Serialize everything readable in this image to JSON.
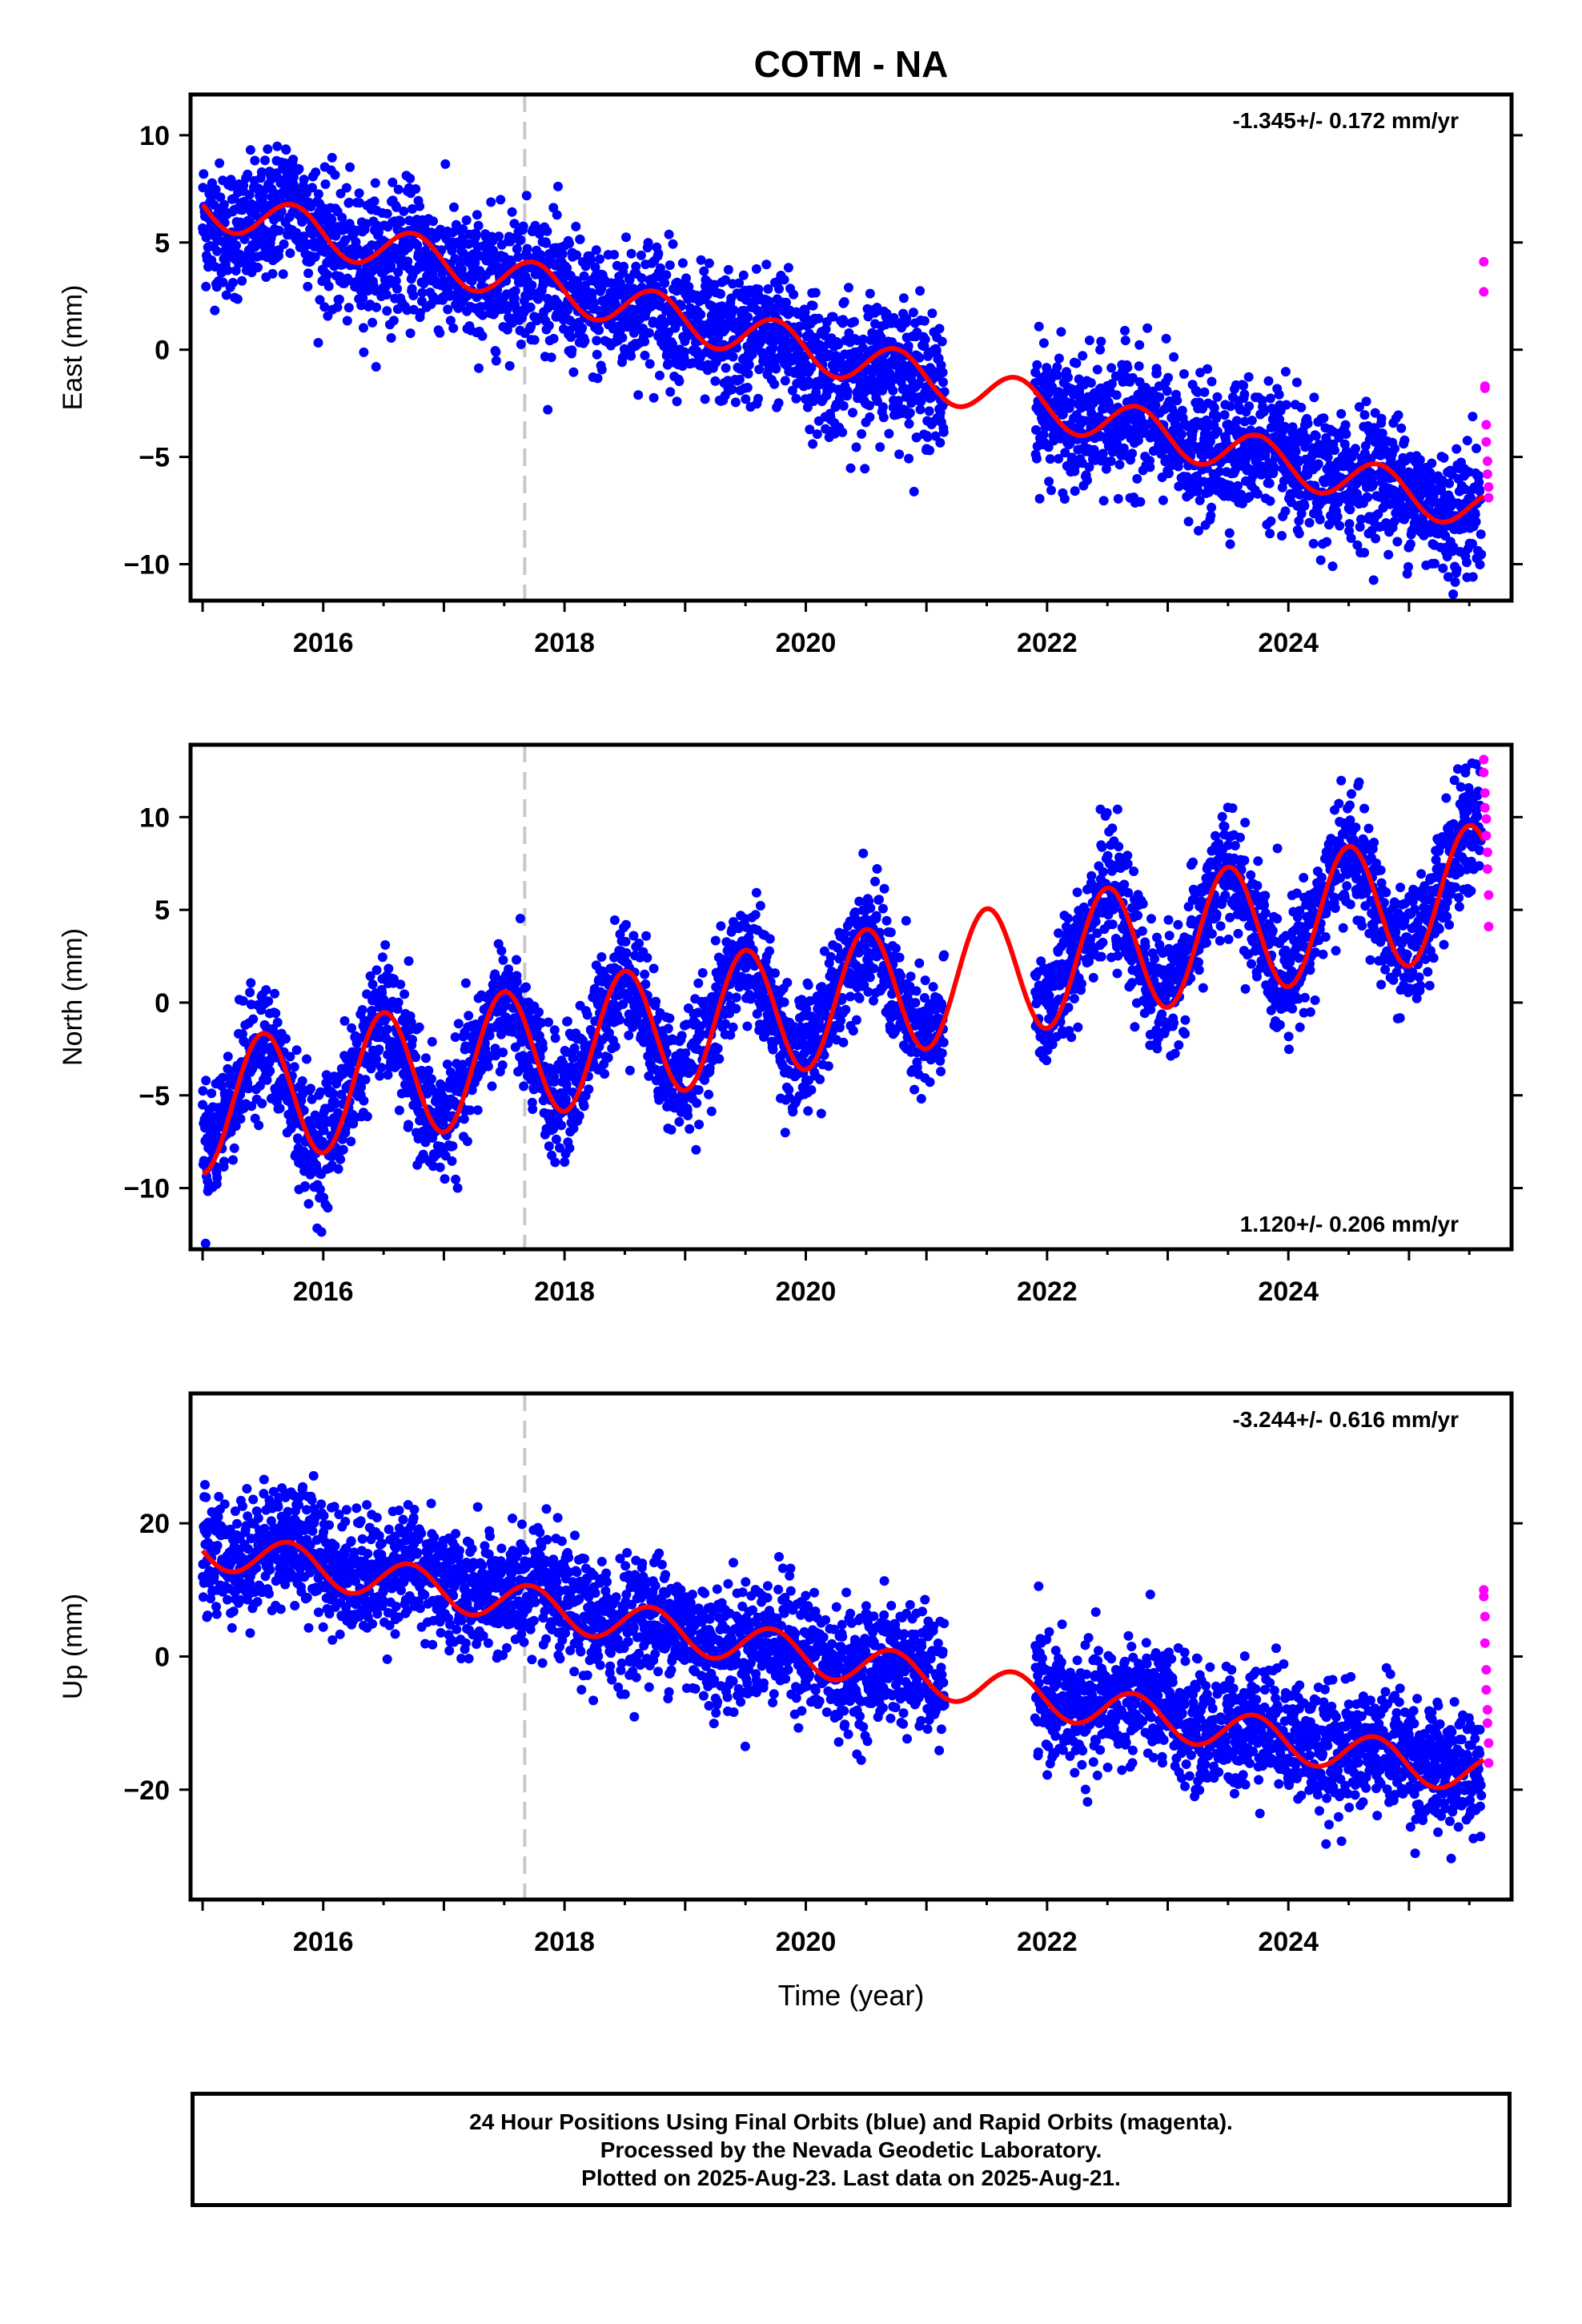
{
  "title": "COTM - NA",
  "colors": {
    "final": "#0000ff",
    "rapid": "#ff00ff",
    "model": "#ff0000",
    "marker": "#c8c8c8"
  },
  "caption": {
    "line1": "24 Hour Positions Using Final Orbits (blue) and Rapid Orbits (magenta).",
    "line2": "Processed by the Nevada Geodetic Laboratory.",
    "line3": "Plotted on 2025-Aug-23. Last data on 2025-Aug-21."
  },
  "chart_data": [
    {
      "type": "scatter",
      "ylabel": "East (mm)",
      "xlabel": "",
      "rate_label": "-1.345+/- 0.172 mm/yr",
      "rate_position": "top-right",
      "xlim": [
        2014.9,
        2025.85
      ],
      "ylim": [
        -11.7,
        11.9
      ],
      "xticks": [
        2016,
        2018,
        2020,
        2022,
        2024
      ],
      "yticks": [
        -10,
        -5,
        0,
        5,
        10
      ],
      "ytick_labels": [
        "−10",
        "−5",
        "0",
        "5",
        "10"
      ],
      "equipment_change_x": 2017.67,
      "rate_mm_per_yr": -1.345,
      "annual_amplitude_mm": 1.0,
      "annual_peak_year_fraction": 0.75,
      "offset_mm": -1.3,
      "noise_sigma_mm": 1.5,
      "final_orbits": {
        "segments": [
          [
            2015.0,
            2021.15
          ],
          [
            2021.9,
            2025.6
          ]
        ],
        "sample_x": [
          2015.1,
          2015.5,
          2015.7,
          2016.0,
          2016.5,
          2017.0,
          2017.5,
          2018.0,
          2018.5,
          2019.0,
          2019.5,
          2020.0,
          2020.5,
          2021.0,
          2022.0,
          2022.5,
          2023.0,
          2023.5,
          2024.0,
          2024.5,
          2025.0,
          2025.5
        ],
        "sample_y": [
          5.5,
          5.5,
          7.5,
          5.0,
          4.0,
          3.5,
          3.5,
          2.5,
          2.0,
          1.0,
          0.5,
          -0.5,
          -1.0,
          -1.5,
          -3.0,
          -3.5,
          -4.0,
          -4.5,
          -5.5,
          -6.0,
          -6.5,
          -7.5
        ]
      },
      "rapid_orbits": {
        "x": [
          2025.62,
          2025.62,
          2025.63,
          2025.63,
          2025.64,
          2025.64,
          2025.65,
          2025.65,
          2025.66,
          2025.66
        ],
        "y": [
          4.1,
          2.7,
          -1.7,
          -1.8,
          -3.5,
          -4.3,
          -5.2,
          -5.8,
          -6.4,
          -6.9
        ]
      }
    },
    {
      "type": "scatter",
      "ylabel": "North (mm)",
      "xlabel": "",
      "rate_label": "1.120+/- 0.206 mm/yr",
      "rate_position": "bottom-right",
      "xlim": [
        2014.9,
        2025.85
      ],
      "ylim": [
        -13.3,
        13.9
      ],
      "xticks": [
        2016,
        2018,
        2020,
        2022,
        2024
      ],
      "yticks": [
        -10,
        -5,
        0,
        5,
        10
      ],
      "ytick_labels": [
        "−10",
        "−5",
        "0",
        "5",
        "10"
      ],
      "equipment_change_x": 2017.67,
      "rate_mm_per_yr": 1.12,
      "annual_amplitude_mm": 3.5,
      "annual_peak_year_fraction": 0.5,
      "offset_mm": 1.0,
      "noise_sigma_mm": 1.6,
      "final_orbits": {
        "segments": [
          [
            2015.0,
            2021.15
          ],
          [
            2021.9,
            2025.6
          ]
        ],
        "sample_x": [
          2015.1,
          2015.5,
          2015.9,
          2016.5,
          2016.9,
          2017.5,
          2017.9,
          2018.5,
          2018.9,
          2019.5,
          2019.9,
          2020.5,
          2020.9,
          2022.0,
          2022.5,
          2022.9,
          2023.5,
          2023.9,
          2024.5,
          2024.9,
          2025.5
        ],
        "sample_y": [
          -6.0,
          -2.5,
          -8.0,
          -1.0,
          -6.8,
          -0.3,
          -5.3,
          1.5,
          -4.2,
          2.5,
          -3.0,
          3.8,
          -1.8,
          1.0,
          6.0,
          0.5,
          7.0,
          1.5,
          8.2,
          2.5,
          9.2
        ]
      },
      "rapid_orbits": {
        "x": [
          2025.62,
          2025.62,
          2025.63,
          2025.63,
          2025.64,
          2025.64,
          2025.65,
          2025.65,
          2025.66,
          2025.66
        ],
        "y": [
          13.1,
          12.4,
          11.3,
          10.5,
          9.9,
          9.0,
          8.1,
          7.2,
          5.8,
          4.1
        ]
      }
    },
    {
      "type": "scatter",
      "ylabel": "Up (mm)",
      "xlabel": "Time (year)",
      "rate_label": "-3.244+/- 0.616 mm/yr",
      "rate_position": "top-right",
      "xlim": [
        2014.9,
        2025.85
      ],
      "ylim": [
        -36.5,
        39.5
      ],
      "xticks": [
        2016,
        2018,
        2020,
        2022,
        2024
      ],
      "yticks": [
        -20,
        0,
        20
      ],
      "ytick_labels": [
        "−20",
        "0",
        "20"
      ],
      "equipment_change_x": 2017.67,
      "rate_mm_per_yr": -3.244,
      "annual_amplitude_mm": 3.0,
      "annual_peak_year_fraction": 0.72,
      "offset_mm": -3.0,
      "noise_sigma_mm": 4.5,
      "final_orbits": {
        "segments": [
          [
            2015.0,
            2021.15
          ],
          [
            2021.9,
            2025.6
          ]
        ],
        "sample_x": [
          2015.1,
          2015.5,
          2015.7,
          2016.0,
          2016.5,
          2017.0,
          2017.5,
          2018.0,
          2018.5,
          2019.0,
          2019.5,
          2020.0,
          2020.5,
          2021.0,
          2022.0,
          2022.5,
          2023.0,
          2023.5,
          2024.0,
          2024.5,
          2025.0,
          2025.5
        ],
        "sample_y": [
          17.0,
          16.0,
          19.0,
          17.0,
          13.0,
          13.0,
          10.0,
          9.0,
          5.0,
          5.0,
          1.0,
          2.0,
          -3.0,
          -2.0,
          -6.0,
          -8.0,
          -6.0,
          -12.0,
          -9.0,
          -15.0,
          -13.0,
          -17.0
        ]
      },
      "rapid_orbits": {
        "x": [
          2025.62,
          2025.62,
          2025.63,
          2025.63,
          2025.64,
          2025.64,
          2025.65,
          2025.65,
          2025.66,
          2025.66
        ],
        "y": [
          10.0,
          9.0,
          6.0,
          2.0,
          -2.0,
          -5.0,
          -8.0,
          -10.0,
          -13.0,
          -16.0
        ]
      }
    }
  ]
}
